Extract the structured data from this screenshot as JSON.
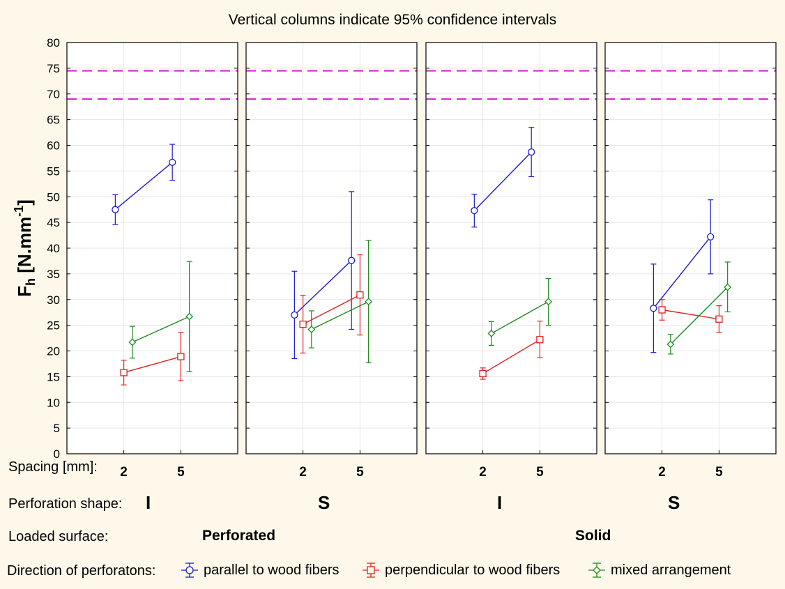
{
  "chart_data": {
    "type": "line",
    "title": "Vertical columns indicate 95% confidence intervals",
    "ylabel_main": "F",
    "ylabel_sub": "h",
    "ylabel_rest": " [N.mm",
    "ylabel_sup": "-1",
    "ylabel_end": "]",
    "ylim": [
      0,
      80
    ],
    "yticks": [
      "0",
      "5",
      "10",
      "15",
      "20",
      "25",
      "30",
      "35",
      "40",
      "45",
      "50",
      "55",
      "60",
      "65",
      "70",
      "75",
      "80"
    ],
    "reference_lines": [
      74.5,
      69.0
    ],
    "reference_color": "#d020d0",
    "x_categories": [
      "2",
      "5"
    ],
    "series": [
      {
        "name": "parallel to wood fibers",
        "color": "#1a1ad0",
        "marker": "circle",
        "offset": -0.15
      },
      {
        "name": "perpendicular to wood fibers",
        "color": "#e02020",
        "marker": "square",
        "offset": 0.0
      },
      {
        "name": "mixed arrangement",
        "color": "#1a8a1a",
        "marker": "diamond",
        "offset": 0.15
      }
    ],
    "panels": [
      {
        "shape": "I",
        "surface": "Perforated",
        "data": [
          {
            "series": 0,
            "means": [
              47.5,
              56.7
            ],
            "lower": [
              44.6,
              53.2
            ],
            "upper": [
              50.4,
              60.2
            ]
          },
          {
            "series": 1,
            "means": [
              15.8,
              18.9
            ],
            "lower": [
              13.4,
              14.2
            ],
            "upper": [
              18.2,
              23.6
            ]
          },
          {
            "series": 2,
            "means": [
              21.7,
              26.7
            ],
            "lower": [
              18.6,
              16.0
            ],
            "upper": [
              24.8,
              37.4
            ]
          }
        ]
      },
      {
        "shape": "S",
        "surface": "Perforated",
        "data": [
          {
            "series": 0,
            "means": [
              27.0,
              37.6
            ],
            "lower": [
              18.5,
              24.2
            ],
            "upper": [
              35.5,
              51.0
            ]
          },
          {
            "series": 1,
            "means": [
              25.2,
              30.9
            ],
            "lower": [
              19.6,
              23.1
            ],
            "upper": [
              30.8,
              38.7
            ]
          },
          {
            "series": 2,
            "means": [
              24.2,
              29.6
            ],
            "lower": [
              20.6,
              17.7
            ],
            "upper": [
              27.8,
              41.5
            ]
          }
        ]
      },
      {
        "shape": "I",
        "surface": "Solid",
        "data": [
          {
            "series": 0,
            "means": [
              47.3,
              58.7
            ],
            "lower": [
              44.1,
              53.9
            ],
            "upper": [
              50.5,
              63.5
            ]
          },
          {
            "series": 1,
            "means": [
              15.6,
              22.2
            ],
            "lower": [
              14.5,
              18.7
            ],
            "upper": [
              16.7,
              25.8
            ]
          },
          {
            "series": 2,
            "means": [
              23.4,
              29.6
            ],
            "lower": [
              21.1,
              25.0
            ],
            "upper": [
              25.7,
              34.1
            ]
          }
        ]
      },
      {
        "shape": "S",
        "surface": "Solid",
        "data": [
          {
            "series": 0,
            "means": [
              28.3,
              42.2
            ],
            "lower": [
              19.7,
              35.0
            ],
            "upper": [
              36.9,
              49.4
            ]
          },
          {
            "series": 1,
            "means": [
              28.0,
              26.2
            ],
            "lower": [
              26.0,
              23.6
            ],
            "upper": [
              30.0,
              28.8
            ]
          },
          {
            "series": 2,
            "means": [
              21.3,
              32.4
            ],
            "lower": [
              19.4,
              27.6
            ],
            "upper": [
              23.2,
              37.3
            ]
          }
        ]
      }
    ]
  },
  "labels": {
    "spacing": "Spacing [mm]:",
    "shape": "Perforation shape:",
    "surface": "Loaded surface:",
    "direction": "Direction of perforatons:",
    "surface_values": [
      "Perforated",
      "Solid"
    ],
    "shape_values": [
      "I",
      "S",
      "I",
      "S"
    ]
  },
  "legend": [
    {
      "label": "parallel to wood fibers"
    },
    {
      "label": "perpendicular to wood fibers"
    },
    {
      "label": "mixed arrangement"
    }
  ]
}
